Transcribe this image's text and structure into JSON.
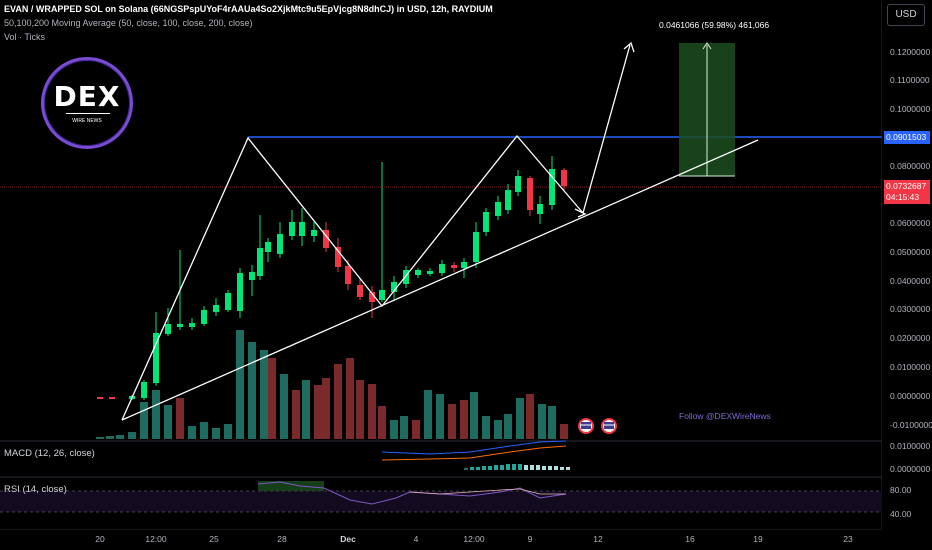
{
  "header": {
    "title": "EVAN / WRAPPED SOL on Solana (66NGSPspUYoF4rAAUa4So2XjkMtc9u5EpVjcg8N8dhCJ) in USD, 12h, RAYDIUM",
    "ma_line": "50,100,200 Moving Average (50, close, 100, close, 200, close)",
    "vol_line": "Vol · Ticks"
  },
  "currency_button": "USD",
  "logo": {
    "text": "DEX",
    "subtext": "WIRE NEWS"
  },
  "measure_label": "0.0461066 (59.98%) 461,066",
  "follow_text": "Follow @DEXWireNews",
  "price_axis": {
    "ticks": [
      "0.1200000",
      "0.1100000",
      "0.1000000",
      "0.0800000",
      "0.0600000",
      "0.0500000",
      "0.0400000",
      "0.0300000",
      "0.0200000",
      "0.0100000",
      "0.0000000",
      "-0.0100000"
    ],
    "blue_tag": "0.0901503",
    "red_tag_price": "0.0732687",
    "red_tag_time": "04:15:43"
  },
  "macd": {
    "label": "MACD (12, 26, close)",
    "ticks": [
      "0.0100000",
      "0.0000000"
    ]
  },
  "rsi": {
    "label": "RSI (14, close)",
    "ticks": [
      "80.00",
      "40.00"
    ]
  },
  "x_axis": [
    "20",
    "12:00",
    "25",
    "28",
    "Dec",
    "4",
    "12:00",
    "9",
    "12",
    "16",
    "19",
    "23"
  ],
  "colors": {
    "up": "#00e676",
    "down": "#f23645",
    "blue_line": "#2962ff",
    "vol_up": "#1e6b5f",
    "vol_down": "#7a2a2a",
    "purple": "#7b4bd6"
  }
}
